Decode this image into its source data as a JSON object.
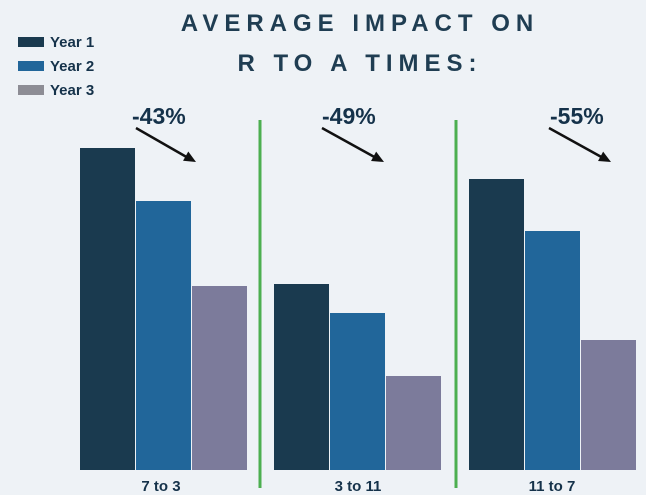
{
  "title": [
    "AVERAGE IMPACT ON",
    "R TO A TIMES:"
  ],
  "legend": [
    {
      "label": "Year 1",
      "color": "#1a3a4f"
    },
    {
      "label": "Year 2",
      "color": "#21669a"
    },
    {
      "label": "Year 3",
      "color": "#7c7b9b"
    }
  ],
  "annotations": [
    "-43%",
    "-49%",
    "-55%"
  ],
  "chart_data": {
    "type": "bar",
    "title": "AVERAGE IMPACT ON R TO A TIMES:",
    "categories": [
      "7 to 3",
      "3 to 11",
      "11 to 7"
    ],
    "series": [
      {
        "name": "Year 1",
        "values": [
          322,
          186,
          291
        ]
      },
      {
        "name": "Year 2",
        "values": [
          269,
          157,
          239
        ]
      },
      {
        "name": "Year 3",
        "values": [
          184,
          94,
          130
        ]
      }
    ],
    "ylim": [
      0,
      340
    ],
    "annotations": [
      "-43%",
      "-49%",
      "-55%"
    ],
    "grid": false,
    "legend_position": "top-left",
    "separator_color": "#4caf50"
  }
}
